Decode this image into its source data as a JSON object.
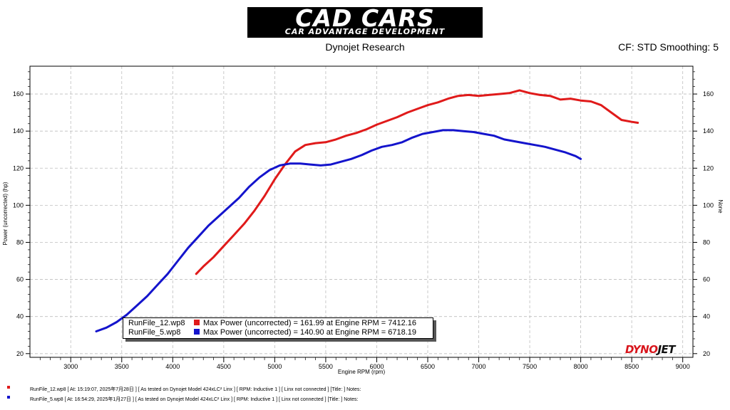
{
  "header": {
    "logo_main": "CAD CARS",
    "logo_sub": "CAR ADVANTAGE DEVELOPMENT",
    "subtitle": "Dynojet Research",
    "cf_text": "CF: STD Smoothing: 5"
  },
  "brand": {
    "dyno": "DYNO",
    "jet": "JET"
  },
  "legend": [
    {
      "file": "RunFile_12.wp8",
      "text": "Max Power (uncorrected) = 161.99 at Engine RPM = 7412.16",
      "color": "#e01a1a"
    },
    {
      "file": "RunFile_5.wp8",
      "text": "Max Power (uncorrected) = 140.90 at Engine RPM = 6718.19",
      "color": "#1414cc"
    }
  ],
  "footer": [
    {
      "text": "RunFile_12.wp8  [  At:  15:19:07,  2025年7月28日 ]  [ As tested on Dynojet Model 424xLC² Linx ]  [ RPM: Inductive 1 ]  [ Linx not connected ]  [Title:  ]   Notes:",
      "color": "#e01a1a"
    },
    {
      "text": "RunFile_5.wp8  [  At:  16:54:29,  2025年1月27日 ]  [ As tested on Dynojet Model 424xLC² Linx ]  [ RPM: Inductive 1 ]  [ Linx not connected ]  [Title:  ]   Notes:",
      "color": "#1414cc"
    }
  ],
  "chart_data": {
    "type": "line",
    "xlabel": "Engine RPM (rpm)",
    "ylabel": "Power (uncorrected) (hp)",
    "y2label": "None",
    "xlim": [
      2600,
      9100
    ],
    "ylim": [
      18,
      175
    ],
    "xticks": [
      3000,
      3500,
      4000,
      4500,
      5000,
      5500,
      6000,
      6500,
      7000,
      7500,
      8000,
      8500,
      9000
    ],
    "yticks": [
      20,
      40,
      60,
      80,
      100,
      120,
      140,
      160
    ],
    "grid": true,
    "legend_position": "bottom-left",
    "series": [
      {
        "name": "RunFile_12.wp8",
        "color": "#e01a1a",
        "x": [
          4230,
          4300,
          4400,
          4500,
          4600,
          4700,
          4800,
          4900,
          5000,
          5100,
          5200,
          5300,
          5400,
          5500,
          5600,
          5700,
          5800,
          5900,
          6000,
          6100,
          6200,
          6300,
          6400,
          6500,
          6600,
          6700,
          6800,
          6900,
          7000,
          7100,
          7200,
          7300,
          7400,
          7500,
          7600,
          7700,
          7800,
          7900,
          8000,
          8100,
          8200,
          8300,
          8400,
          8500,
          8560
        ],
        "y": [
          63,
          67,
          72,
          78,
          84,
          90,
          97,
          105,
          114,
          122,
          129,
          132.5,
          133.5,
          134,
          135.5,
          137.5,
          139,
          141,
          143.5,
          145.5,
          147.5,
          150,
          152,
          154,
          155.5,
          157.5,
          159,
          159.5,
          159,
          159.5,
          160,
          160.5,
          162,
          160.5,
          159.5,
          159,
          157,
          157.5,
          156.5,
          156,
          154,
          150,
          146,
          145,
          144.5
        ]
      },
      {
        "name": "RunFile_5.wp8",
        "color": "#1414cc",
        "x": [
          3250,
          3350,
          3450,
          3550,
          3650,
          3750,
          3850,
          3950,
          4050,
          4150,
          4250,
          4350,
          4450,
          4550,
          4650,
          4750,
          4850,
          4950,
          5050,
          5150,
          5250,
          5350,
          5450,
          5550,
          5650,
          5750,
          5850,
          5950,
          6050,
          6150,
          6250,
          6350,
          6450,
          6550,
          6650,
          6750,
          6850,
          6950,
          7050,
          7150,
          7250,
          7350,
          7450,
          7550,
          7650,
          7750,
          7850,
          7950,
          8000
        ],
        "y": [
          32,
          34,
          37,
          41,
          46,
          51,
          57,
          63,
          70,
          77,
          83,
          89,
          94,
          99,
          104,
          110,
          115,
          119,
          121.5,
          122.5,
          122.5,
          122,
          121.5,
          122,
          123.5,
          125,
          127,
          129.5,
          131.5,
          132.5,
          134,
          136.5,
          138.5,
          139.5,
          140.5,
          140.5,
          140,
          139.5,
          138.5,
          137.5,
          135.5,
          134.5,
          133.5,
          132.5,
          131.5,
          130,
          128.5,
          126.5,
          125
        ]
      }
    ]
  }
}
